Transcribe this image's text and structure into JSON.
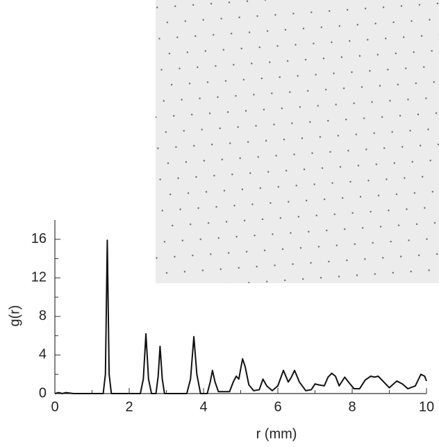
{
  "chart_data": {
    "type": "line",
    "xlabel": "r (mm)",
    "ylabel": "g(r)",
    "x": [
      0,
      0.1,
      0.2,
      0.3,
      0.5,
      1.3,
      1.36,
      1.41,
      1.46,
      1.52,
      2.3,
      2.38,
      2.45,
      2.52,
      2.6,
      2.72,
      2.78,
      2.83,
      2.89,
      2.95,
      3.55,
      3.65,
      3.74,
      3.82,
      3.92,
      4.1,
      4.18,
      4.24,
      4.31,
      4.4,
      4.7,
      4.8,
      4.88,
      4.95,
      5.05,
      5.12,
      5.22,
      5.35,
      5.5,
      5.6,
      5.7,
      5.85,
      6.0,
      6.15,
      6.28,
      6.35,
      6.45,
      6.58,
      6.75,
      6.9,
      7.0,
      7.1,
      7.25,
      7.35,
      7.45,
      7.55,
      7.65,
      7.8,
      7.9,
      8.05,
      8.2,
      8.35,
      8.5,
      8.6,
      8.7,
      8.85,
      9.0,
      9.2,
      9.35,
      9.5,
      9.7,
      9.85,
      9.95,
      10
    ],
    "values": [
      0,
      0.1,
      0,
      0.1,
      0,
      0,
      2,
      15.9,
      2,
      0,
      0,
      1.5,
      6.2,
      1.5,
      0,
      0,
      1.8,
      4.9,
      1.5,
      0,
      0,
      1.5,
      5.9,
      2,
      0,
      0,
      1.2,
      2.4,
      1.2,
      0.2,
      0.2,
      1.2,
      1.8,
      1.5,
      3.6,
      2.8,
      0.9,
      0.3,
      0.4,
      1.5,
      0.8,
      0.3,
      0.8,
      2.4,
      1.2,
      1.6,
      2.4,
      1.2,
      0.3,
      0.4,
      1.0,
      0.9,
      0.8,
      1.7,
      2.1,
      1.8,
      0.8,
      1.7,
      1.2,
      0.5,
      0.5,
      1.4,
      1.8,
      1.7,
      1.8,
      1.2,
      0.6,
      1.3,
      1.0,
      0.5,
      0.8,
      2.0,
      1.8,
      1.3
    ],
    "color": "#111111",
    "xlim": [
      0,
      10
    ],
    "xticks": [
      0,
      2,
      4,
      6,
      8,
      10
    ],
    "ylim": [
      0,
      18
    ],
    "yticks": [
      0,
      4,
      8,
      12,
      16
    ]
  }
}
